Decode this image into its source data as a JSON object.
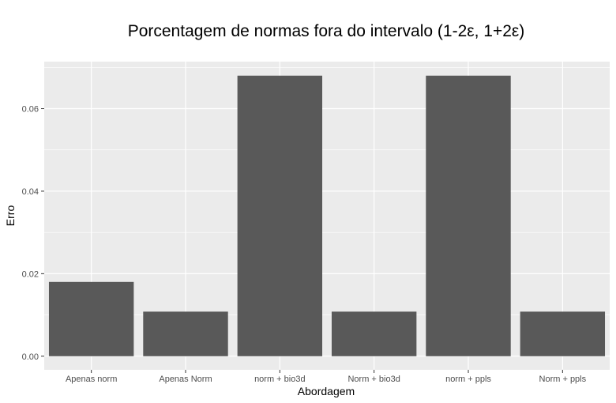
{
  "chart_data": {
    "type": "bar",
    "title": "Porcentagem de normas fora do intervalo (1-2ε, 1+2ε)",
    "xlabel": "Abordagem",
    "ylabel": "Erro",
    "categories": [
      "Apenas norm",
      "Apenas Norm",
      "norm + bio3d",
      "Norm + bio3d",
      "norm + ppls",
      "Norm + ppls"
    ],
    "values": [
      0.018,
      0.0108,
      0.068,
      0.0108,
      0.068,
      0.0108
    ],
    "ylim": [
      -0.0033,
      0.0714
    ],
    "yticks": [
      0.0,
      0.02,
      0.04,
      0.06
    ],
    "ytick_labels": [
      "0.00",
      "0.02",
      "0.04",
      "0.06"
    ],
    "grid": true,
    "legend": "none",
    "colors": {
      "bar": "#595959",
      "panel": "#ebebeb",
      "grid_major": "#ffffff",
      "tick_text": "#4d4d4d"
    }
  }
}
